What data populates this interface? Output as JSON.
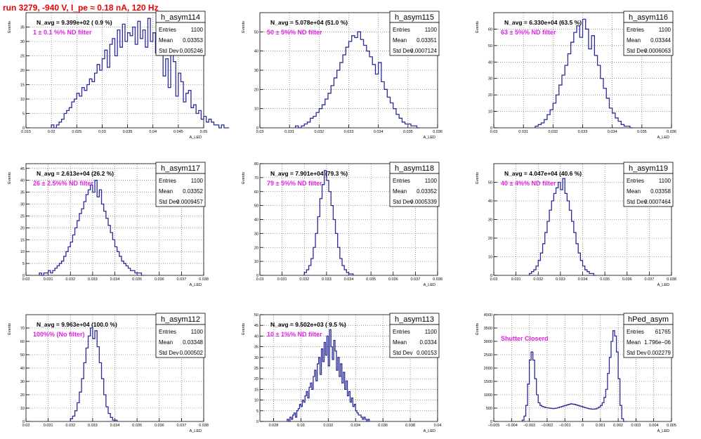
{
  "canvas_title": "run 3279,  -940 V, I_pe ≈ 0.18 nA, 120 Hz",
  "chart_data": [
    {
      "type": "bar",
      "name": "h_asym114",
      "xlabel": "A_LED",
      "ylabel": "Events",
      "xlim": [
        0.015,
        0.05
      ],
      "ylim": [
        0,
        40
      ],
      "xticks": [
        0.015,
        0.02,
        0.025,
        0.03,
        0.035,
        0.04,
        0.045,
        0.05
      ],
      "xtick_labels": [
        "0.015",
        "0.02",
        "0.025",
        "0.03",
        "0.035",
        "0.04",
        "0.045",
        "0.05"
      ],
      "yticks": [
        0,
        5,
        10,
        15,
        20,
        25,
        30,
        35
      ],
      "ytick_labels": [
        "0",
        "5",
        "10",
        "15",
        "20",
        "25",
        "30",
        "35"
      ],
      "stats": {
        "entries": "1100",
        "mean": "0.03353",
        "std_dev": "0.005246"
      },
      "navg_text": "N_avg = 9.399e+02 ( 0.9 %)",
      "filter_text": "1 ± 0.1 %% ND filter",
      "bins": {
        "start": 0.02,
        "width": 0.0005,
        "values": [
          1,
          0,
          1,
          2,
          3,
          5,
          6,
          7,
          9,
          10,
          12,
          11,
          14,
          13,
          15,
          17,
          16,
          19,
          22,
          20,
          24,
          27,
          21,
          29,
          31,
          25,
          34,
          28,
          36,
          30,
          33,
          32,
          35,
          29,
          37,
          31,
          34,
          28,
          38,
          30,
          33,
          26,
          35,
          27,
          18,
          24,
          14,
          29,
          23,
          11,
          19,
          16,
          9,
          12,
          13,
          7,
          8,
          5,
          6,
          3,
          4,
          2,
          3,
          2,
          1,
          1,
          0,
          1,
          0,
          0
        ]
      }
    },
    {
      "type": "bar",
      "name": "h_asym115",
      "xlabel": "A_LED",
      "ylabel": "Events",
      "xlim": [
        0.03,
        0.036
      ],
      "ylim": [
        0,
        60
      ],
      "xticks": [
        0.03,
        0.031,
        0.032,
        0.033,
        0.034,
        0.035,
        0.036
      ],
      "xtick_labels": [
        "0.03",
        "0.031",
        "0.032",
        "0.033",
        "0.034",
        "0.035",
        "0.036"
      ],
      "yticks": [
        0,
        10,
        20,
        30,
        40,
        50
      ],
      "ytick_labels": [
        "0",
        "10",
        "20",
        "30",
        "40",
        "50"
      ],
      "stats": {
        "entries": "1100",
        "mean": "0.03351",
        "std_dev": "0.0007124"
      },
      "navg_text": "N_avg = 5.078e+04 (51.0 %)",
      "filter_text": "50 ± 5%% ND filter",
      "bins": {
        "start": 0.0312,
        "width": 0.0001,
        "values": [
          1,
          0,
          1,
          2,
          3,
          5,
          6,
          8,
          10,
          12,
          15,
          18,
          22,
          26,
          30,
          34,
          38,
          42,
          45,
          48,
          47,
          50,
          46,
          43,
          40,
          37,
          33,
          28,
          34,
          24,
          20,
          16,
          13,
          10,
          7,
          5,
          3,
          2,
          2,
          1,
          1,
          0
        ]
      }
    },
    {
      "type": "bar",
      "name": "h_asym116",
      "xlabel": "A_LED",
      "ylabel": "Events",
      "xlim": [
        0.03,
        0.036
      ],
      "ylim": [
        0,
        70
      ],
      "xticks": [
        0.03,
        0.031,
        0.032,
        0.033,
        0.034,
        0.035,
        0.036
      ],
      "xtick_labels": [
        "0.03",
        "0.031",
        "0.032",
        "0.033",
        "0.034",
        "0.035",
        "0.036"
      ],
      "yticks": [
        0,
        10,
        20,
        30,
        40,
        50,
        60
      ],
      "ytick_labels": [
        "0",
        "10",
        "20",
        "30",
        "40",
        "50",
        "60"
      ],
      "stats": {
        "entries": "1100",
        "mean": "0.03344",
        "std_dev": "0.0006063"
      },
      "navg_text": "N_avg = 6.330e+04 (63.5 %)",
      "filter_text": "63 ± 5%% ND filter",
      "bins": {
        "start": 0.0314,
        "width": 0.0001,
        "values": [
          1,
          2,
          3,
          5,
          8,
          11,
          15,
          20,
          26,
          32,
          38,
          45,
          52,
          58,
          62,
          55,
          66,
          60,
          48,
          56,
          44,
          38,
          30,
          24,
          18,
          12,
          9,
          6,
          4,
          2,
          1,
          1,
          0
        ]
      }
    },
    {
      "type": "bar",
      "name": "h_asym117",
      "xlabel": "A_LED",
      "ylabel": "Events",
      "xlim": [
        0.03,
        0.038
      ],
      "ylim": [
        0,
        47
      ],
      "xticks": [
        0.03,
        0.031,
        0.032,
        0.033,
        0.034,
        0.035,
        0.036,
        0.037,
        0.038
      ],
      "xtick_labels": [
        "0.03",
        "0.031",
        "0.032",
        "0.033",
        "0.034",
        "0.035",
        "0.036",
        "0.037",
        "0.038"
      ],
      "yticks": [
        0,
        5,
        10,
        15,
        20,
        25,
        30,
        35,
        40,
        45
      ],
      "ytick_labels": [
        "0",
        "5",
        "10",
        "15",
        "20",
        "25",
        "30",
        "35",
        "40",
        "45"
      ],
      "stats": {
        "entries": "1100",
        "mean": "0.03352",
        "std_dev": "0.0009457"
      },
      "navg_text": "N_avg = 2.613e+04 (26.2 %)",
      "filter_text": "26 ± 2.5%% ND filter",
      "bins": {
        "start": 0.0306,
        "width": 0.0001,
        "values": [
          1,
          0,
          1,
          1,
          2,
          1,
          2,
          3,
          4,
          5,
          6,
          8,
          10,
          12,
          14,
          17,
          20,
          23,
          26,
          28,
          31,
          34,
          36,
          38,
          35,
          40,
          33,
          36,
          30,
          27,
          24,
          21,
          18,
          15,
          12,
          10,
          8,
          6,
          5,
          4,
          3,
          2,
          2,
          1,
          1,
          1,
          0
        ]
      }
    },
    {
      "type": "bar",
      "name": "h_asym118",
      "xlabel": "A_LED",
      "ylabel": "Events",
      "xlim": [
        0.03,
        0.038
      ],
      "ylim": [
        0,
        80
      ],
      "xticks": [
        0.03,
        0.031,
        0.032,
        0.033,
        0.034,
        0.035,
        0.036,
        0.037,
        0.038
      ],
      "xtick_labels": [
        "0.03",
        "0.031",
        "0.032",
        "0.033",
        "0.034",
        "0.035",
        "0.036",
        "0.037",
        "0.038"
      ],
      "yticks": [
        0,
        10,
        20,
        30,
        40,
        50,
        60,
        70,
        80
      ],
      "ytick_labels": [
        "0",
        "10",
        "20",
        "30",
        "40",
        "50",
        "60",
        "70",
        "80"
      ],
      "stats": {
        "entries": "1100",
        "mean": "0.03352",
        "std_dev": "0.0005339"
      },
      "navg_text": "N_avg = 7.901e+04 (79.3 %)",
      "filter_text": "79 ± 5%% ND filter",
      "bins": {
        "start": 0.032,
        "width": 0.0001,
        "values": [
          2,
          4,
          7,
          12,
          20,
          30,
          42,
          55,
          65,
          75,
          68,
          60,
          50,
          40,
          30,
          20,
          12,
          7,
          4,
          2,
          1,
          1
        ]
      }
    },
    {
      "type": "bar",
      "name": "h_asym119",
      "xlabel": "A_LED",
      "ylabel": "Events",
      "xlim": [
        0.03,
        0.038
      ],
      "ylim": [
        0,
        60
      ],
      "xticks": [
        0.03,
        0.031,
        0.032,
        0.033,
        0.034,
        0.035,
        0.036,
        0.037,
        0.038
      ],
      "xtick_labels": [
        "0.03",
        "0.031",
        "0.032",
        "0.033",
        "0.034",
        "0.035",
        "0.036",
        "0.037",
        "0.038"
      ],
      "yticks": [
        0,
        10,
        20,
        30,
        40,
        50
      ],
      "ytick_labels": [
        "0",
        "10",
        "20",
        "30",
        "40",
        "50"
      ],
      "stats": {
        "entries": "1100",
        "mean": "0.03358",
        "std_dev": "0.0007464"
      },
      "navg_text": "N_avg = 4.047e+04 (40.6 %)",
      "filter_text": "40 ± 4%% ND filter",
      "bins": {
        "start": 0.0316,
        "width": 0.0001,
        "values": [
          1,
          2,
          3,
          5,
          8,
          12,
          17,
          23,
          29,
          35,
          40,
          44,
          47,
          50,
          46,
          52,
          44,
          40,
          35,
          29,
          23,
          17,
          12,
          8,
          5,
          3,
          2,
          1,
          1,
          0
        ]
      }
    },
    {
      "type": "bar",
      "name": "h_asym112",
      "xlabel": "A_LED",
      "ylabel": "Events",
      "xlim": [
        0.03,
        0.038
      ],
      "ylim": [
        0,
        80
      ],
      "xticks": [
        0.03,
        0.031,
        0.032,
        0.033,
        0.034,
        0.035,
        0.036,
        0.037,
        0.038
      ],
      "xtick_labels": [
        "0.03",
        "0.031",
        "0.032",
        "0.033",
        "0.034",
        "0.035",
        "0.036",
        "0.037",
        "0.038"
      ],
      "yticks": [
        0,
        10,
        20,
        30,
        40,
        50,
        60,
        70
      ],
      "ytick_labels": [
        "0",
        "10",
        "20",
        "30",
        "40",
        "50",
        "60",
        "70"
      ],
      "stats": {
        "entries": "1100",
        "mean": "0.03348",
        "std_dev": "0.000502"
      },
      "navg_text": "N_avg = 9.963e+04 (100.0 %)",
      "filter_text": "100%% (No filter)",
      "bins": {
        "start": 0.032,
        "width": 0.0001,
        "values": [
          2,
          4,
          8,
          14,
          22,
          32,
          44,
          55,
          64,
          70,
          62,
          68,
          56,
          44,
          32,
          20,
          11,
          6,
          3,
          1,
          1
        ]
      }
    },
    {
      "type": "bar",
      "name": "h_asym113",
      "xlabel": "A_LED",
      "ylabel": "Events",
      "xlim": [
        0.027,
        0.04
      ],
      "ylim": [
        0,
        50
      ],
      "xticks": [
        0.028,
        0.03,
        0.032,
        0.034,
        0.036,
        0.038,
        0.04
      ],
      "xtick_labels": [
        "0.028",
        "0.03",
        "0.032",
        "0.034",
        "0.036",
        "0.038",
        "0.04"
      ],
      "yticks": [
        0,
        5,
        10,
        15,
        20,
        25,
        30,
        35,
        40,
        45,
        50
      ],
      "ytick_labels": [
        "0",
        "5",
        "10",
        "15",
        "20",
        "25",
        "30",
        "35",
        "40",
        "45",
        "50"
      ],
      "stats": {
        "entries": "1100",
        "mean": "0.0334",
        "std_dev": "0.00153"
      },
      "navg_text": "N_avg = 9.502e+03 ( 9.5 %)",
      "filter_text": "10 ± 1%% ND filter",
      "bins": {
        "start": 0.029,
        "width": 0.0001,
        "values": [
          1,
          0,
          2,
          1,
          3,
          4,
          2,
          5,
          6,
          8,
          7,
          10,
          9,
          12,
          14,
          11,
          16,
          18,
          15,
          21,
          24,
          19,
          27,
          30,
          22,
          34,
          28,
          37,
          31,
          40,
          26,
          43,
          35,
          29,
          38,
          33,
          24,
          30,
          21,
          27,
          18,
          23,
          15,
          19,
          12,
          14,
          9,
          11,
          7,
          8,
          5,
          4,
          3,
          3,
          2,
          1,
          2,
          1,
          0,
          1
        ]
      }
    },
    {
      "type": "bar",
      "name": "hPed_asym",
      "xlabel": "A_LED",
      "ylabel": "Events",
      "xlim": [
        -0.005,
        0.005
      ],
      "ylim": [
        0,
        4000
      ],
      "xticks": [
        -0.005,
        -0.004,
        -0.003,
        -0.002,
        -0.001,
        0,
        0.001,
        0.002,
        0.003,
        0.004,
        0.005
      ],
      "xtick_labels": [
        "−0.005",
        "−0.004",
        "−0.003",
        "−0.002",
        "−0.001",
        "0",
        "0.001",
        "0.002",
        "0.003",
        "0.004",
        "0.005"
      ],
      "yticks": [
        0,
        500,
        1000,
        1500,
        2000,
        2500,
        3000,
        3500,
        4000
      ],
      "ytick_labels": [
        "0",
        "500",
        "1000",
        "1500",
        "2000",
        "2500",
        "3000",
        "3500",
        "4000"
      ],
      "stats": {
        "entries": "61765",
        "mean": "1.796e−06",
        "std_dev": "0.002279"
      },
      "navg_text": "",
      "filter_text": "Shutter Closerd",
      "bins": {
        "start": -0.0034,
        "width": 0.0001,
        "values": [
          50,
          200,
          600,
          1400,
          2300,
          2600,
          2300,
          1600,
          1000,
          700,
          600,
          560,
          540,
          520,
          510,
          500,
          490,
          480,
          490,
          500,
          520,
          540,
          560,
          580,
          600,
          620,
          640,
          660,
          650,
          640,
          620,
          600,
          580,
          560,
          540,
          520,
          500,
          480,
          470,
          460,
          460,
          470,
          500,
          540,
          600,
          700,
          900,
          1200,
          1800,
          2400,
          3000,
          3400,
          3200,
          2600,
          1600,
          600,
          100,
          0
        ]
      }
    }
  ]
}
